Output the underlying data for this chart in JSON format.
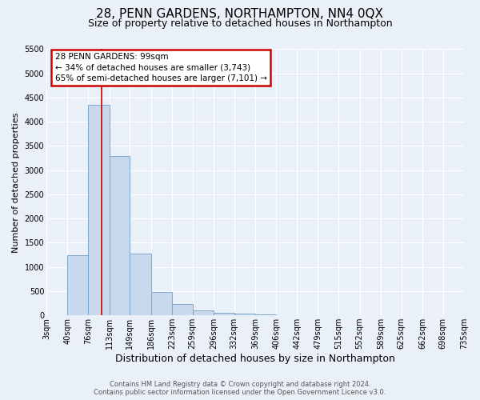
{
  "title": "28, PENN GARDENS, NORTHAMPTON, NN4 0QX",
  "subtitle": "Size of property relative to detached houses in Northampton",
  "xlabel": "Distribution of detached houses by size in Northampton",
  "ylabel": "Number of detached properties",
  "footer_line1": "Contains HM Land Registry data © Crown copyright and database right 2024.",
  "footer_line2": "Contains public sector information licensed under the Open Government Licence v3.0.",
  "bin_edges": [
    3,
    40,
    76,
    113,
    149,
    186,
    223,
    259,
    296,
    332,
    369,
    406,
    442,
    479,
    515,
    552,
    589,
    625,
    662,
    698,
    735
  ],
  "bin_labels": [
    "3sqm",
    "40sqm",
    "76sqm",
    "113sqm",
    "149sqm",
    "186sqm",
    "223sqm",
    "259sqm",
    "296sqm",
    "332sqm",
    "369sqm",
    "406sqm",
    "442sqm",
    "479sqm",
    "515sqm",
    "552sqm",
    "589sqm",
    "625sqm",
    "662sqm",
    "698sqm",
    "735sqm"
  ],
  "bar_heights": [
    0,
    1250,
    4350,
    3300,
    1270,
    490,
    230,
    100,
    50,
    30,
    20,
    5,
    0,
    0,
    0,
    0,
    0,
    0,
    0,
    0
  ],
  "bar_color": "#c8d9ee",
  "bar_edge_color": "#7fa8cc",
  "ylim": [
    0,
    5500
  ],
  "yticks": [
    0,
    500,
    1000,
    1500,
    2000,
    2500,
    3000,
    3500,
    4000,
    4500,
    5000,
    5500
  ],
  "property_size": 99,
  "vline_color": "#cc0000",
  "annotation_line1": "28 PENN GARDENS: 99sqm",
  "annotation_line2": "← 34% of detached houses are smaller (3,743)",
  "annotation_line3": "65% of semi-detached houses are larger (7,101) →",
  "annotation_box_edgecolor": "#cc0000",
  "bg_color": "#eaf0f8",
  "grid_color": "#ffffff",
  "title_fontsize": 11,
  "subtitle_fontsize": 9,
  "xlabel_fontsize": 9,
  "ylabel_fontsize": 8,
  "tick_fontsize": 7,
  "annotation_fontsize": 7.5,
  "footer_fontsize": 6
}
